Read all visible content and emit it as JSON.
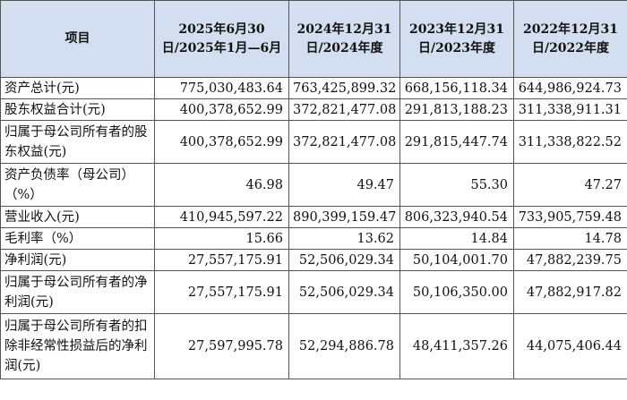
{
  "header": {
    "item": "项目",
    "col1": "2025年6月30日/2025年1月—6月",
    "col2": "2024年12月31日/2024年度",
    "col3": "2023年12月31日/2023年度",
    "col4": "2022年12月31日/2022年度"
  },
  "rows": [
    {
      "label": "资产总计(元)",
      "v1": "775,030,483.64",
      "v2": "763,425,899.32",
      "v3": "668,156,118.34",
      "v4": "644,986,924.73"
    },
    {
      "label": "股东权益合计(元)",
      "v1": "400,378,652.99",
      "v2": "372,821,477.08",
      "v3": "291,813,188.23",
      "v4": "311,338,911.31"
    },
    {
      "label": "归属于母公司所有者的股东权益(元)",
      "v1": "400,378,652.99",
      "v2": "372,821,477.08",
      "v3": "291,815,447.74",
      "v4": "311,338,822.52"
    },
    {
      "label": "资产负债率（母公司）（%）",
      "v1": "46.98",
      "v2": "49.47",
      "v3": "55.30",
      "v4": "47.27"
    },
    {
      "label": "营业收入(元)",
      "v1": "410,945,597.22",
      "v2": "890,399,159.47",
      "v3": "806,323,940.54",
      "v4": "733,905,759.48"
    },
    {
      "label": "毛利率（%）",
      "v1": "15.66",
      "v2": "13.62",
      "v3": "14.84",
      "v4": "14.78"
    },
    {
      "label": "净利润(元)",
      "v1": "27,557,175.91",
      "v2": "52,506,029.34",
      "v3": "50,104,001.70",
      "v4": "47,882,239.75"
    },
    {
      "label": "归属于母公司所有者的净利润(元)",
      "v1": "27,557,175.91",
      "v2": "52,506,029.34",
      "v3": "50,106,350.00",
      "v4": "47,882,917.82"
    },
    {
      "label": "归属于母公司所有者的扣除非经常性损益后的净利润(元)",
      "v1": "27,597,995.78",
      "v2": "52,294,886.78",
      "v3": "48,411,357.26",
      "v4": "44,075,406.44"
    }
  ]
}
